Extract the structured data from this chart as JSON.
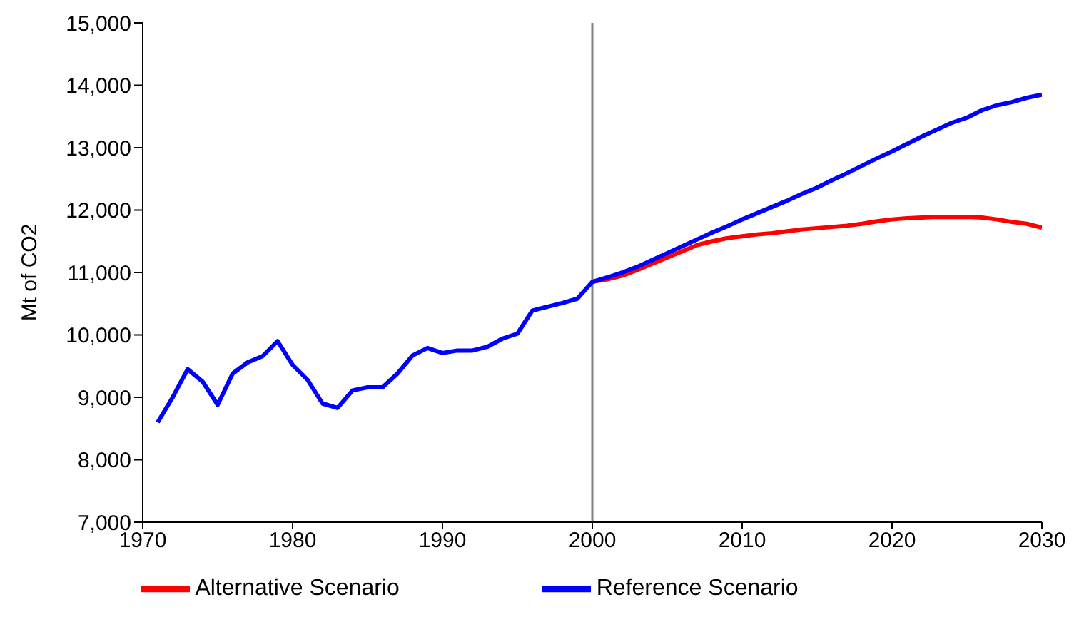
{
  "chart_data": {
    "type": "line",
    "ylabel": "Mt of CO2",
    "xlim": [
      1970,
      2030
    ],
    "xticks": [
      1970,
      1980,
      1990,
      2000,
      2010,
      2020,
      2030
    ],
    "ylim": [
      7000,
      15000
    ],
    "yticks": [
      {
        "value": 7000,
        "label": "7,000"
      },
      {
        "value": 8000,
        "label": "8,000"
      },
      {
        "value": 9000,
        "label": "9,000"
      },
      {
        "value": 10000,
        "label": "10,000"
      },
      {
        "value": 11000,
        "label": "11,000"
      },
      {
        "value": 12000,
        "label": "12,000"
      },
      {
        "value": 13000,
        "label": "13,000"
      },
      {
        "value": 14000,
        "label": "14,000"
      },
      {
        "value": 15000,
        "label": "15,000"
      }
    ],
    "grid": false,
    "legend": "bottom",
    "marker": "none",
    "line_style": "solid",
    "ref_lines": [
      {
        "axis": "x",
        "value": 2000,
        "label": null,
        "color": "#808080"
      }
    ],
    "series": [
      {
        "name": "Alternative Scenario",
        "color": "#ff0000",
        "x": [
          2000,
          2001,
          2002,
          2003,
          2004,
          2005,
          2006,
          2007,
          2008,
          2009,
          2010,
          2011,
          2012,
          2013,
          2014,
          2015,
          2016,
          2017,
          2018,
          2019,
          2020,
          2021,
          2022,
          2023,
          2024,
          2025,
          2026,
          2027,
          2028,
          2029,
          2030
        ],
        "values": [
          10850,
          10890,
          10950,
          11040,
          11140,
          11240,
          11340,
          11440,
          11500,
          11550,
          11580,
          11610,
          11630,
          11660,
          11690,
          11710,
          11730,
          11750,
          11780,
          11820,
          11850,
          11870,
          11880,
          11890,
          11890,
          11890,
          11880,
          11850,
          11810,
          11780,
          11720
        ]
      },
      {
        "name": "Reference Scenario",
        "color": "#0000ff",
        "x": [
          1971,
          1972,
          1973,
          1974,
          1975,
          1976,
          1977,
          1978,
          1979,
          1980,
          1981,
          1982,
          1983,
          1984,
          1985,
          1986,
          1987,
          1988,
          1989,
          1990,
          1991,
          1992,
          1993,
          1994,
          1995,
          1996,
          1997,
          1998,
          1999,
          2000,
          2001,
          2002,
          2003,
          2004,
          2005,
          2006,
          2007,
          2008,
          2009,
          2010,
          2011,
          2012,
          2013,
          2014,
          2015,
          2016,
          2017,
          2018,
          2019,
          2020,
          2021,
          2022,
          2023,
          2024,
          2025,
          2026,
          2027,
          2028,
          2029,
          2030
        ],
        "values": [
          8600,
          9000,
          9450,
          9250,
          8880,
          9380,
          9560,
          9660,
          9900,
          9520,
          9280,
          8900,
          8830,
          9110,
          9160,
          9160,
          9380,
          9670,
          9790,
          9710,
          9750,
          9750,
          9810,
          9940,
          10020,
          10390,
          10450,
          10510,
          10580,
          10850,
          10920,
          11000,
          11090,
          11200,
          11310,
          11420,
          11530,
          11640,
          11740,
          11850,
          11950,
          12050,
          12150,
          12260,
          12360,
          12480,
          12590,
          12710,
          12830,
          12940,
          13060,
          13180,
          13290,
          13400,
          13480,
          13600,
          13680,
          13730,
          13800,
          13850
        ]
      }
    ]
  }
}
